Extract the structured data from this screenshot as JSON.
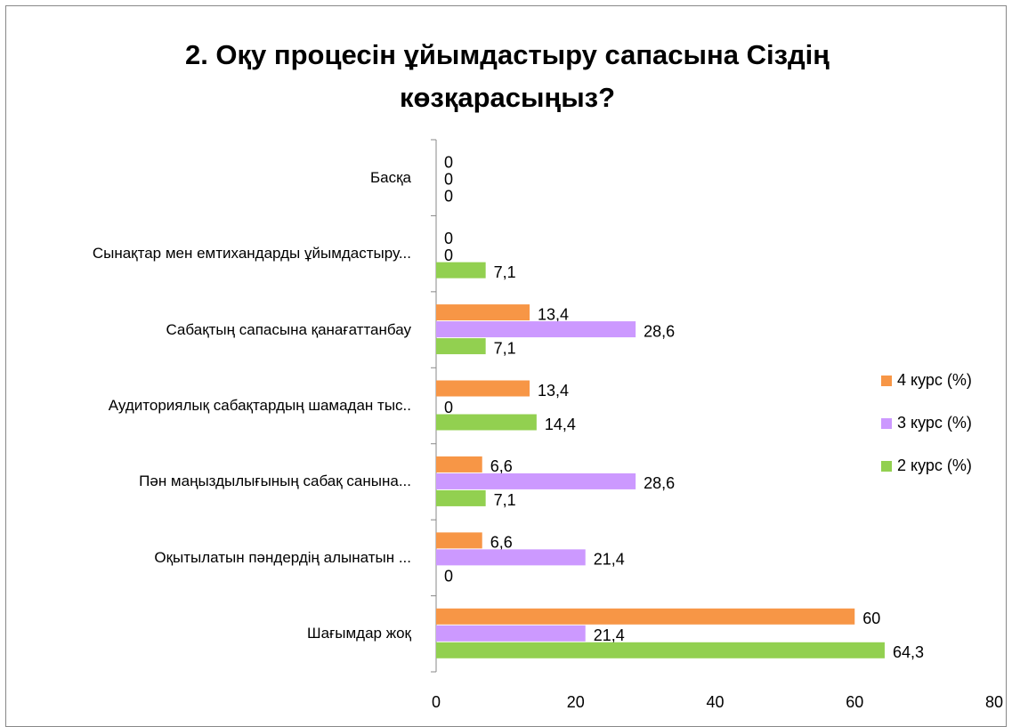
{
  "chart_data": {
    "type": "bar",
    "orientation": "horizontal",
    "title": "2. Оқу процесін ұйымдастыру сапасына Сіздің көзқарасыңыз?",
    "categories": [
      "Басқа",
      "Сынақтар мен емтихандарды ұйымдастыру...",
      "Сабақтың сапасына қанағаттанбау",
      "Аудиториялық сабақтардың шамадан тыс..",
      "Пән маңыздылығының сабақ санына...",
      "Оқытылатын пәндердің алынатын ...",
      "Шағымдар жоқ"
    ],
    "series": [
      {
        "name": "4 курс (%)",
        "color": "#f79646",
        "values": [
          0,
          0,
          13.4,
          13.4,
          6.6,
          6.6,
          60
        ],
        "value_labels": [
          "0",
          "0",
          "13,4",
          "13,4",
          "6,6",
          "6,6",
          "60"
        ]
      },
      {
        "name": "3 курс (%)",
        "color": "#cc99ff",
        "values": [
          0,
          0,
          28.6,
          0,
          28.6,
          21.4,
          21.4
        ],
        "value_labels": [
          "0",
          "0",
          "28,6",
          "0",
          "28,6",
          "21,4",
          "21,4"
        ]
      },
      {
        "name": "2 курс (%)",
        "color": "#92d050",
        "values": [
          0,
          7.1,
          7.1,
          14.4,
          7.1,
          0,
          64.3
        ],
        "value_labels": [
          "0",
          "7,1",
          "7,1",
          "14,4",
          "7,1",
          "0",
          "64,3"
        ]
      }
    ],
    "xlim": [
      0,
      80
    ],
    "xticks": [
      0,
      20,
      40,
      60,
      80
    ],
    "grid": false,
    "legend": "right"
  }
}
